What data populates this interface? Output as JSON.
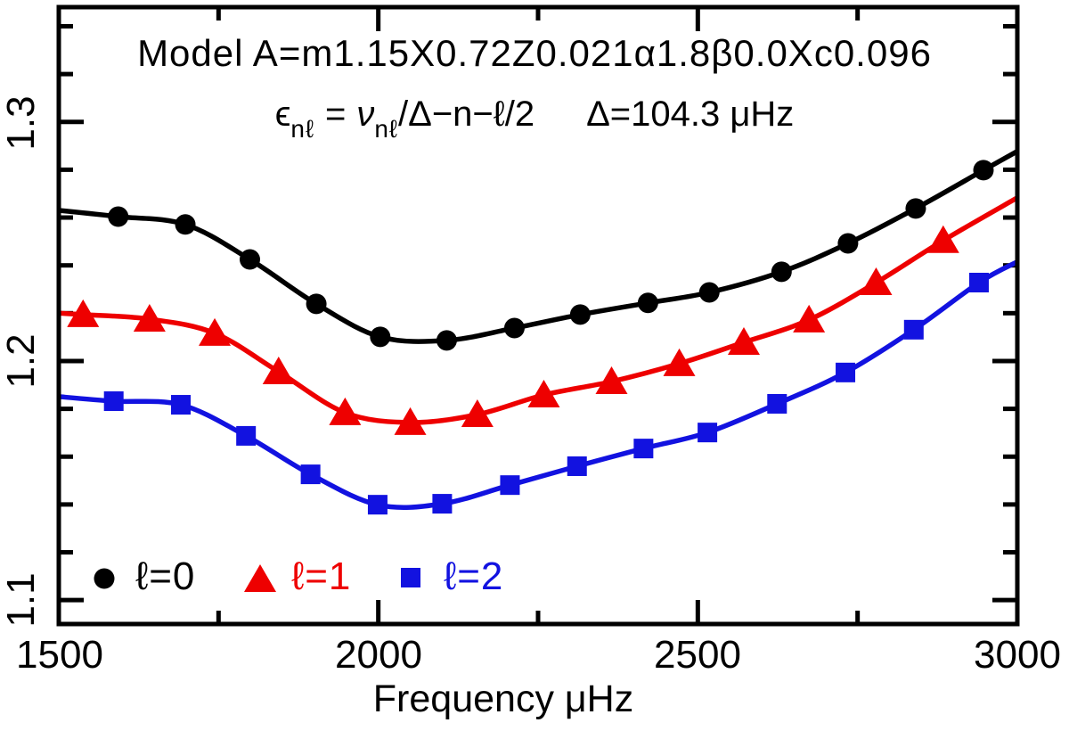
{
  "title": {
    "text": "Model A=m1.15X0.72Z0.021α1.8β0.0Xc0.096"
  },
  "equation": {
    "epsilon": "ϵ",
    "sub_left": "nℓ",
    "equals": "=",
    "nu": "ν",
    "sub_right": "nℓ",
    "expr": "/Δ−n−ℓ/2",
    "delta_value": "Δ=104.3 μHz"
  },
  "axes": {
    "x": {
      "label": "Frequency μHz",
      "tick_labels": [
        "1500",
        "2000",
        "2500",
        "3000"
      ]
    },
    "y": {
      "tick_labels": [
        "1.3",
        "1.2",
        "1.1"
      ]
    }
  },
  "legend": {
    "items": [
      {
        "label": "ℓ=0",
        "marker": "circle",
        "color": "#000000"
      },
      {
        "label": "ℓ=1",
        "marker": "triangle",
        "color": "#ee0000"
      },
      {
        "label": "ℓ=2",
        "marker": "square",
        "color": "#1212e0"
      }
    ]
  },
  "colors": {
    "frame": "#000000",
    "background": "#ffffff"
  },
  "chart_data": {
    "type": "line",
    "title": "Model A=m1.15X0.72Z0.021α1.8β0.0Xc0.096",
    "subtitle": "ϵ_nℓ = ν_nℓ/Δ − n − ℓ/2,  Δ = 104.3 μHz",
    "xlabel": "Frequency μHz",
    "ylabel": "ϵ_nℓ",
    "xlim": [
      1500,
      3000
    ],
    "ylim": [
      1.09,
      1.348
    ],
    "x_major_ticks": [
      1500,
      2000,
      2500,
      3000
    ],
    "x_minor_ticks": [
      1750,
      2250,
      2750
    ],
    "y_major_ticks": [
      1.1,
      1.2,
      1.3
    ],
    "y_minor_ticks": [
      1.12,
      1.14,
      1.16,
      1.18,
      1.22,
      1.24,
      1.26,
      1.28,
      1.32,
      1.34
    ],
    "grid": false,
    "legend_position": "inside-bottom-left",
    "series": [
      {
        "name": "ℓ=0",
        "marker": "circle",
        "color": "#000000",
        "x": [
          1593,
          1698,
          1799,
          1903,
          2003,
          2107,
          2213,
          2316,
          2422,
          2518,
          2631,
          2735,
          2841,
          2947
        ],
        "y": [
          1.2604,
          1.2571,
          1.2425,
          1.2239,
          1.2101,
          1.2086,
          1.2138,
          1.2194,
          1.2243,
          1.2287,
          1.2373,
          1.2492,
          1.2638,
          1.2798
        ],
        "line_start": [
          1500,
          1.263
        ],
        "line_end": [
          3000,
          1.2877
        ]
      },
      {
        "name": "ℓ=1",
        "marker": "triangle",
        "color": "#ee0000",
        "x": [
          1538,
          1642,
          1744,
          1844,
          1948,
          2050,
          2155,
          2259,
          2365,
          2471,
          2572,
          2674,
          2779,
          2884
        ],
        "y": [
          1.2194,
          1.2175,
          1.2116,
          1.1955,
          1.1784,
          1.1743,
          1.1776,
          1.1858,
          1.1914,
          1.1989,
          1.2078,
          1.2172,
          1.2328,
          1.2504
        ],
        "line_start": [
          1500,
          1.22
        ],
        "line_end": [
          3000,
          1.2683
        ]
      },
      {
        "name": "ℓ=2",
        "marker": "square",
        "color": "#1212e0",
        "x": [
          1586,
          1691,
          1793,
          1894,
          1999,
          2100,
          2206,
          2311,
          2415,
          2515,
          2624,
          2731,
          2838,
          2940
        ],
        "y": [
          1.1832,
          1.1817,
          1.1687,
          1.1526,
          1.1399,
          1.1403,
          1.1481,
          1.156,
          1.1634,
          1.1701,
          1.1821,
          1.1952,
          1.2131,
          1.2328
        ],
        "line_start": [
          1500,
          1.1851
        ],
        "line_end": [
          3000,
          1.2415
        ]
      }
    ]
  }
}
